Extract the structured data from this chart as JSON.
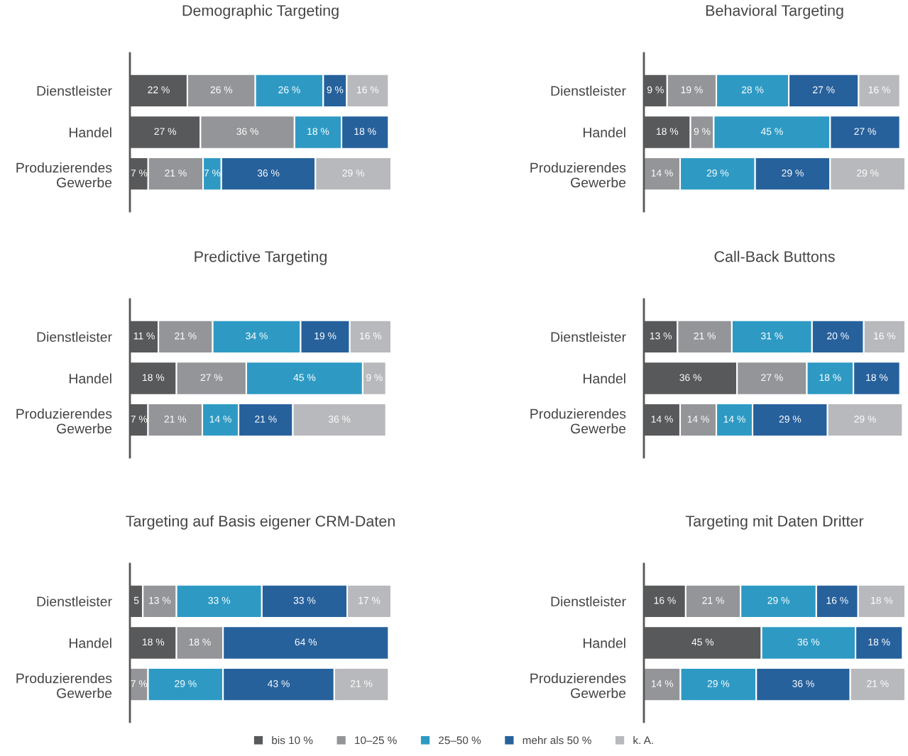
{
  "chart_data": [
    {
      "type": "bar",
      "orientation": "horizontal",
      "stacked": true,
      "title": "Demographic Targeting",
      "categories": [
        "Dienstleister",
        "Handel",
        "Produzierendes\nGewerbe"
      ],
      "tick_labels": "y",
      "grid": false,
      "legend": "bottom",
      "series": [
        {
          "name": "bis 10 %",
          "color": "#58595b",
          "values": [
            22,
            27,
            7
          ],
          "value_labels": [
            "22 %",
            "27 %",
            "7 %"
          ]
        },
        {
          "name": "10–25 %",
          "color": "#939598",
          "values": [
            26,
            36,
            21
          ],
          "value_labels": [
            "26 %",
            "36 %",
            "21 %"
          ]
        },
        {
          "name": "25–50 %",
          "color": "#2e9ac4",
          "values": [
            26,
            18,
            7
          ],
          "value_labels": [
            "26 %",
            "18 %",
            "7 %"
          ]
        },
        {
          "name": "mehr als 50 %",
          "color": "#27619c",
          "values": [
            9,
            18,
            36
          ],
          "value_labels": [
            "9 %",
            "18 %",
            "36 %"
          ]
        },
        {
          "name": "k. A.",
          "color": "#b8b9bc",
          "values": [
            16,
            null,
            29
          ],
          "value_labels": [
            "16 %",
            null,
            "29 %"
          ]
        }
      ]
    },
    {
      "type": "bar",
      "orientation": "horizontal",
      "stacked": true,
      "title": "Behavioral Targeting",
      "categories": [
        "Dienstleister",
        "Handel",
        "Produzierendes\nGewerbe"
      ],
      "tick_labels": "y",
      "grid": false,
      "series": [
        {
          "color": "#58595b",
          "values": [
            9,
            18,
            null
          ],
          "value_labels": [
            "9 %",
            "18 %",
            null
          ]
        },
        {
          "color": "#939598",
          "values": [
            19,
            9,
            14
          ],
          "value_labels": [
            "19 %",
            "9 %",
            "14 %"
          ]
        },
        {
          "color": "#2e9ac4",
          "values": [
            28,
            45,
            29
          ],
          "value_labels": [
            "28 %",
            "45 %",
            "29 %"
          ]
        },
        {
          "color": "#27619c",
          "values": [
            27,
            27,
            29
          ],
          "value_labels": [
            "27 %",
            "27 %",
            "29 %"
          ]
        },
        {
          "color": "#b8b9bc",
          "values": [
            16,
            null,
            29
          ],
          "value_labels": [
            "16 %",
            null,
            "29 %"
          ]
        }
      ]
    },
    {
      "type": "bar",
      "orientation": "horizontal",
      "stacked": true,
      "title": "Predictive Targeting",
      "categories": [
        "Dienstleister",
        "Handel",
        "Produzierendes\nGewerbe"
      ],
      "tick_labels": "y",
      "grid": false,
      "series": [
        {
          "color": "#58595b",
          "values": [
            11,
            18,
            7
          ],
          "value_labels": [
            "11 %",
            "18 %",
            "7 %"
          ]
        },
        {
          "color": "#939598",
          "values": [
            21,
            27,
            21
          ],
          "value_labels": [
            "21 %",
            "27 %",
            "21 %"
          ]
        },
        {
          "color": "#2e9ac4",
          "values": [
            34,
            45,
            14
          ],
          "value_labels": [
            "34 %",
            "45 %",
            "14 %"
          ]
        },
        {
          "color": "#27619c",
          "values": [
            19,
            null,
            21
          ],
          "value_labels": [
            "19 %",
            null,
            "21 %"
          ]
        },
        {
          "color": "#b8b9bc",
          "values": [
            16,
            9,
            36
          ],
          "value_labels": [
            "16 %",
            "9 %",
            "36 %"
          ]
        }
      ]
    },
    {
      "type": "bar",
      "orientation": "horizontal",
      "stacked": true,
      "title": "Call-Back Buttons",
      "categories": [
        "Dienstleister",
        "Handel",
        "Produzierendes\nGewerbe"
      ],
      "tick_labels": "y",
      "grid": false,
      "series": [
        {
          "color": "#58595b",
          "values": [
            13,
            36,
            14
          ],
          "value_labels": [
            "13 %",
            "36 %",
            "14 %"
          ]
        },
        {
          "color": "#939598",
          "values": [
            21,
            27,
            14
          ],
          "value_labels": [
            "21 %",
            "27 %",
            "14 %"
          ]
        },
        {
          "color": "#2e9ac4",
          "values": [
            31,
            18,
            14
          ],
          "value_labels": [
            "31 %",
            "18 %",
            "14 %"
          ]
        },
        {
          "color": "#27619c",
          "values": [
            20,
            18,
            29
          ],
          "value_labels": [
            "20 %",
            "18 %",
            "29 %"
          ]
        },
        {
          "color": "#b8b9bc",
          "values": [
            16,
            null,
            29
          ],
          "value_labels": [
            "16 %",
            null,
            "29 %"
          ]
        }
      ]
    },
    {
      "type": "bar",
      "orientation": "horizontal",
      "stacked": true,
      "title": "Targeting auf Basis eigener CRM-Daten",
      "categories": [
        "Dienstleister",
        "Handel",
        "Produzierendes\nGewerbe"
      ],
      "tick_labels": "y",
      "grid": false,
      "series": [
        {
          "color": "#58595b",
          "values": [
            5,
            18,
            null
          ],
          "value_labels": [
            "5",
            "18 %",
            null
          ]
        },
        {
          "color": "#939598",
          "values": [
            13,
            18,
            7
          ],
          "value_labels": [
            "13 %",
            "18 %",
            "7 %"
          ]
        },
        {
          "color": "#2e9ac4",
          "values": [
            33,
            null,
            29
          ],
          "value_labels": [
            "33 %",
            null,
            "29 %"
          ]
        },
        {
          "color": "#27619c",
          "values": [
            33,
            64,
            43
          ],
          "value_labels": [
            "33 %",
            "64 %",
            "43 %"
          ]
        },
        {
          "color": "#b8b9bc",
          "values": [
            17,
            null,
            21
          ],
          "value_labels": [
            "17 %",
            null,
            "21 %"
          ]
        }
      ]
    },
    {
      "type": "bar",
      "orientation": "horizontal",
      "stacked": true,
      "title": "Targeting mit Daten Dritter",
      "categories": [
        "Dienstleister",
        "Handel",
        "Produzierendes\nGewerbe"
      ],
      "tick_labels": "y",
      "grid": false,
      "series": [
        {
          "color": "#58595b",
          "values": [
            16,
            45,
            null
          ],
          "value_labels": [
            "16 %",
            "45 %",
            null
          ]
        },
        {
          "color": "#939598",
          "values": [
            21,
            null,
            14
          ],
          "value_labels": [
            "21 %",
            null,
            "14 %"
          ]
        },
        {
          "color": "#2e9ac4",
          "values": [
            29,
            36,
            29
          ],
          "value_labels": [
            "29 %",
            "36 %",
            "29 %"
          ]
        },
        {
          "color": "#27619c",
          "values": [
            16,
            18,
            36
          ],
          "value_labels": [
            "16 %",
            "18 %",
            "36 %"
          ]
        },
        {
          "color": "#b8b9bc",
          "values": [
            18,
            null,
            21
          ],
          "value_labels": [
            "18 %",
            null,
            "21 %"
          ]
        }
      ]
    }
  ]
}
